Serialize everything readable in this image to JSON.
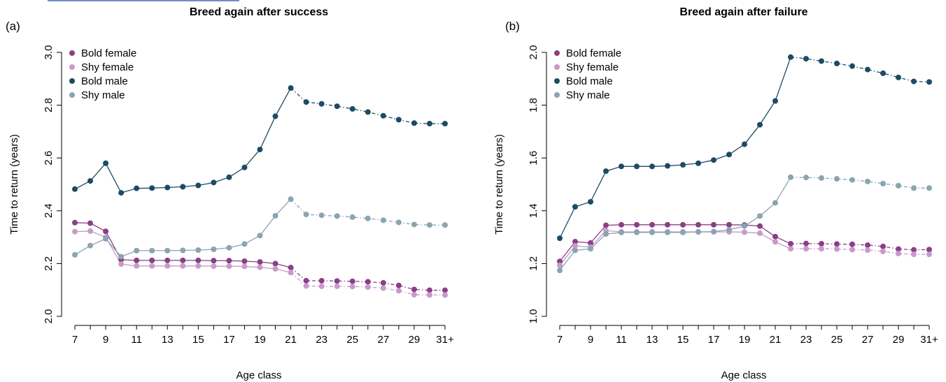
{
  "colors": {
    "bold_female": "#8b3f86",
    "shy_female": "#c79bc7",
    "bold_male": "#1d4b63",
    "shy_male": "#8aa4b0"
  },
  "chart_data": [
    {
      "type": "line",
      "panel_tag": "(a)",
      "title": "Breed again after success",
      "xlabel": "Age class",
      "ylabel": "Time to return (years)",
      "x": [
        7,
        8,
        9,
        10,
        11,
        12,
        13,
        14,
        15,
        16,
        17,
        18,
        19,
        20,
        21,
        22,
        23,
        24,
        25,
        26,
        27,
        28,
        29,
        30,
        31
      ],
      "xtick_values": [
        7,
        9,
        11,
        13,
        15,
        17,
        19,
        21,
        23,
        25,
        27,
        29,
        31
      ],
      "xtick_labels": [
        "7",
        "9",
        "11",
        "13",
        "15",
        "17",
        "19",
        "21",
        "23",
        "25",
        "27",
        "29",
        "31+"
      ],
      "ylim": [
        2.0,
        3.0
      ],
      "yticks": [
        2.0,
        2.2,
        2.4,
        2.6,
        2.8,
        3.0
      ],
      "ytick_labels": [
        "2.0",
        "2.2",
        "2.4",
        "2.6",
        "2.8",
        "3.0"
      ],
      "solid_until": 21,
      "legend_position": "top-left",
      "series": [
        {
          "name": "Bold female",
          "key": "bold_female",
          "values": [
            2.355,
            2.353,
            2.322,
            2.215,
            2.212,
            2.212,
            2.212,
            2.212,
            2.212,
            2.211,
            2.211,
            2.209,
            2.206,
            2.2,
            2.185,
            2.135,
            2.135,
            2.134,
            2.133,
            2.131,
            2.127,
            2.117,
            2.102,
            2.099,
            2.099
          ]
        },
        {
          "name": "Shy female",
          "key": "shy_female",
          "values": [
            2.321,
            2.323,
            2.3,
            2.198,
            2.191,
            2.191,
            2.191,
            2.191,
            2.191,
            2.19,
            2.19,
            2.189,
            2.186,
            2.18,
            2.166,
            2.115,
            2.114,
            2.114,
            2.113,
            2.111,
            2.107,
            2.097,
            2.082,
            2.081,
            2.081
          ]
        },
        {
          "name": "Bold male",
          "key": "bold_male",
          "values": [
            2.482,
            2.513,
            2.58,
            2.468,
            2.485,
            2.486,
            2.488,
            2.491,
            2.496,
            2.507,
            2.527,
            2.564,
            2.632,
            2.758,
            2.865,
            2.812,
            2.805,
            2.796,
            2.786,
            2.774,
            2.76,
            2.745,
            2.732,
            2.73,
            2.73
          ]
        },
        {
          "name": "Shy male",
          "key": "shy_male",
          "values": [
            2.233,
            2.268,
            2.294,
            2.226,
            2.249,
            2.249,
            2.249,
            2.25,
            2.251,
            2.254,
            2.26,
            2.274,
            2.306,
            2.381,
            2.444,
            2.386,
            2.383,
            2.38,
            2.376,
            2.371,
            2.364,
            2.356,
            2.348,
            2.346,
            2.346
          ]
        }
      ]
    },
    {
      "type": "line",
      "panel_tag": "(b)",
      "title": "Breed again after failure",
      "xlabel": "Age class",
      "ylabel": "Time to return (years)",
      "x": [
        7,
        8,
        9,
        10,
        11,
        12,
        13,
        14,
        15,
        16,
        17,
        18,
        19,
        20,
        21,
        22,
        23,
        24,
        25,
        26,
        27,
        28,
        29,
        30,
        31
      ],
      "xtick_values": [
        7,
        9,
        11,
        13,
        15,
        17,
        19,
        21,
        23,
        25,
        27,
        29,
        31
      ],
      "xtick_labels": [
        "7",
        "9",
        "11",
        "13",
        "15",
        "17",
        "19",
        "21",
        "23",
        "25",
        "27",
        "29",
        "31+"
      ],
      "ylim": [
        1.0,
        2.0
      ],
      "yticks": [
        1.0,
        1.2,
        1.4,
        1.6,
        1.8,
        2.0
      ],
      "ytick_labels": [
        "1.0",
        "1.2",
        "1.4",
        "1.6",
        "1.8",
        "2.0"
      ],
      "solid_until": 22,
      "legend_position": "top-left",
      "series": [
        {
          "name": "Bold female",
          "key": "bold_female",
          "values": [
            1.208,
            1.283,
            1.278,
            1.345,
            1.347,
            1.347,
            1.347,
            1.347,
            1.347,
            1.347,
            1.347,
            1.347,
            1.346,
            1.342,
            1.302,
            1.275,
            1.276,
            1.275,
            1.274,
            1.273,
            1.27,
            1.265,
            1.255,
            1.252,
            1.253
          ]
        },
        {
          "name": "Shy female",
          "key": "shy_female",
          "values": [
            1.193,
            1.267,
            1.262,
            1.325,
            1.32,
            1.32,
            1.32,
            1.32,
            1.32,
            1.32,
            1.32,
            1.32,
            1.319,
            1.315,
            1.282,
            1.256,
            1.256,
            1.256,
            1.255,
            1.253,
            1.251,
            1.246,
            1.238,
            1.235,
            1.235
          ]
        },
        {
          "name": "Bold male",
          "key": "bold_male",
          "values": [
            1.296,
            1.415,
            1.434,
            1.55,
            1.568,
            1.568,
            1.568,
            1.57,
            1.574,
            1.58,
            1.592,
            1.613,
            1.652,
            1.726,
            1.816,
            1.982,
            1.976,
            1.967,
            1.958,
            1.948,
            1.935,
            1.921,
            1.905,
            1.89,
            1.888
          ]
        },
        {
          "name": "Shy male",
          "key": "shy_male",
          "values": [
            1.174,
            1.25,
            1.256,
            1.312,
            1.318,
            1.318,
            1.318,
            1.318,
            1.318,
            1.32,
            1.321,
            1.328,
            1.342,
            1.38,
            1.43,
            1.527,
            1.526,
            1.524,
            1.521,
            1.517,
            1.511,
            1.503,
            1.495,
            1.486,
            1.486
          ]
        }
      ]
    }
  ]
}
